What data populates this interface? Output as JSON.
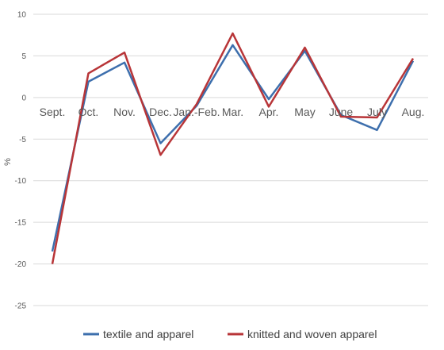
{
  "chart_data": {
    "type": "line",
    "categories": [
      "Sept.",
      "Oct.",
      "Nov.",
      "Dec.",
      "Jan.-Feb.",
      "Mar.",
      "Apr.",
      "May",
      "June",
      "July",
      "Aug."
    ],
    "series": [
      {
        "name": "textile and apparel",
        "color": "#3d6fad",
        "values": [
          -18.5,
          1.9,
          4.2,
          -5.5,
          -1.0,
          6.3,
          -0.2,
          5.6,
          -2.1,
          -3.9,
          4.4
        ]
      },
      {
        "name": "knitted and woven apparel",
        "color": "#b83538",
        "values": [
          -20.0,
          2.9,
          5.4,
          -6.9,
          -0.8,
          7.7,
          -1.1,
          6.0,
          -2.3,
          -2.4,
          4.7
        ]
      }
    ],
    "title": "",
    "xlabel": "",
    "ylabel": "%",
    "ylim": [
      -25,
      10
    ],
    "yticks": [
      "10",
      "5",
      "0",
      "-5",
      "-10",
      "-15",
      "-20",
      "-25"
    ],
    "grid": true,
    "legend_position": "bottom"
  }
}
